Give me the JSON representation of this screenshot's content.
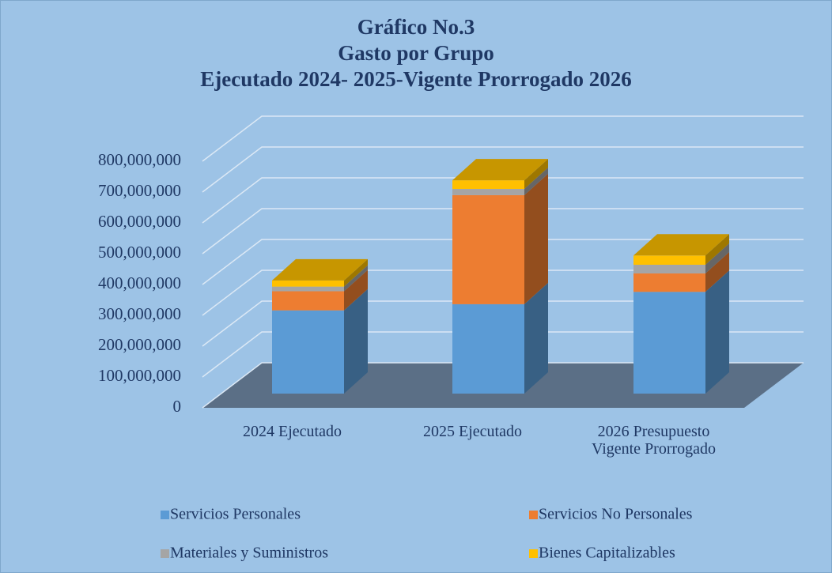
{
  "chart_data": {
    "type": "bar3d_stacked",
    "title": "Gráfico No.3",
    "subtitle": [
      "Gasto por Grupo",
      "Ejecutado 2024- 2025-Vigente Prorrogado 2026"
    ],
    "categories": [
      "2024 Ejecutado",
      "2025 Ejecutado",
      "2026 Presupuesto Vigente Prorrogado"
    ],
    "series": [
      {
        "name": "Servicios Personales",
        "color": "#5b9bd5",
        "values": [
          270000000,
          290000000,
          330000000
        ]
      },
      {
        "name": "Servicios No Personales",
        "color": "#ed7d31",
        "values": [
          62000000,
          354000000,
          60000000
        ]
      },
      {
        "name": "Materiales y Suministros",
        "color": "#a5a5a5",
        "values": [
          15000000,
          20000000,
          28000000
        ]
      },
      {
        "name": "Bienes Capitalizables",
        "color": "#ffc000",
        "values": [
          20000000,
          28000000,
          30000000
        ]
      }
    ],
    "ylim": [
      0,
      900000000
    ],
    "yticks": [
      {
        "value": 0,
        "label": "0"
      },
      {
        "value": 100000000,
        "label": "100,000,000"
      },
      {
        "value": 200000000,
        "label": "200,000,000"
      },
      {
        "value": 300000000,
        "label": "300,000,000"
      },
      {
        "value": 400000000,
        "label": "400,000,000"
      },
      {
        "value": 500000000,
        "label": "500,000,000"
      },
      {
        "value": 600000000,
        "label": "600,000,000"
      },
      {
        "value": 700000000,
        "label": "700,000,000"
      },
      {
        "value": 800000000,
        "label": "800,000,000"
      }
    ],
    "grid": true
  }
}
